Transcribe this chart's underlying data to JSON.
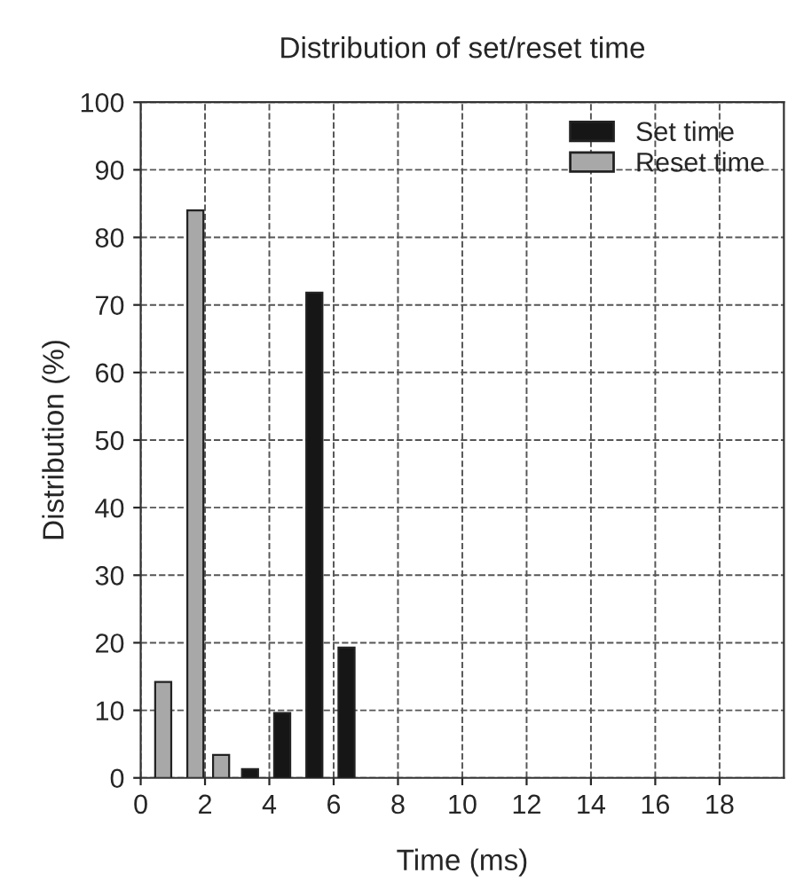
{
  "chart_data": {
    "type": "bar",
    "title": "Distribution of set/reset time",
    "xlabel": "Time (ms)",
    "ylabel": "Distribution (%)",
    "series": [
      {
        "name": "Set time",
        "color": "#161616",
        "x": [
          3.4,
          4.4,
          5.4,
          6.4
        ],
        "values": [
          1.3,
          9.6,
          71.8,
          19.3
        ]
      },
      {
        "name": "Reset time",
        "color": "#a8a8a8",
        "x": [
          0.7,
          1.7,
          2.5
        ],
        "values": [
          14.2,
          84,
          3.4
        ]
      }
    ],
    "xlim": [
      0,
      20
    ],
    "xticks": [
      0,
      2,
      4,
      6,
      8,
      10,
      12,
      14,
      16,
      18
    ],
    "ylim": [
      0,
      100
    ],
    "yticks": [
      0,
      10,
      20,
      30,
      40,
      50,
      60,
      70,
      80,
      90,
      100
    ],
    "grid": true,
    "legend": "top right",
    "line_style": "dashed"
  }
}
